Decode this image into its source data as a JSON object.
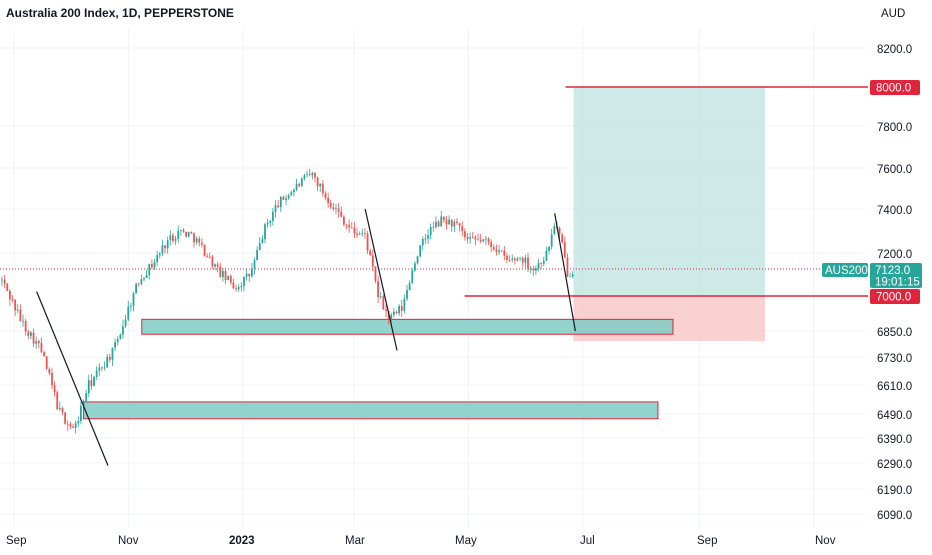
{
  "chart": {
    "title": "Australia 200 Index, 1D, PEPPERSTONE",
    "currency": "AUD",
    "y_ticks": [
      "8200.0",
      "7800.0",
      "7600.0",
      "7400.0",
      "7200.0",
      "6850.0",
      "6730.0",
      "6610.0",
      "6490.0",
      "6390.0",
      "6290.0",
      "6190.0",
      "6090.0"
    ],
    "x_ticks": [
      {
        "label": "Sep",
        "bold": false
      },
      {
        "label": "Nov",
        "bold": false
      },
      {
        "label": "2023",
        "bold": true
      },
      {
        "label": "Mar",
        "bold": false
      },
      {
        "label": "May",
        "bold": false
      },
      {
        "label": "Jul",
        "bold": false
      },
      {
        "label": "Sep",
        "bold": false
      },
      {
        "label": "Nov",
        "bold": false
      }
    ],
    "price_tags": {
      "target": "8000.0",
      "stop": "7000.0",
      "symbol": "AUS200",
      "last_price": "7123.0",
      "countdown": "19:01:15"
    },
    "colors": {
      "up": "#26a69a",
      "down": "#ef5350",
      "target_line": "#e0243c",
      "profit_zone": "#b2dfdb",
      "loss_zone": "#f8c6c6",
      "support_zone": "#80cbc4",
      "tag_red": "#e0243c",
      "tag_green": "#26a69a"
    }
  },
  "chart_data": {
    "type": "candlestick",
    "title": "Australia 200 Index, 1D, PEPPERSTONE",
    "ylabel": "AUD",
    "ylim": [
      6050,
      8350
    ],
    "x_range": [
      "2022-08-25",
      "2023-11-20"
    ],
    "last_price": 7123.0,
    "price_path": [
      [
        "2022-08-25",
        7080
      ],
      [
        "2022-09-05",
        6890
      ],
      [
        "2022-09-15",
        6770
      ],
      [
        "2022-09-25",
        6500
      ],
      [
        "2022-10-03",
        6420
      ],
      [
        "2022-10-10",
        6600
      ],
      [
        "2022-10-17",
        6680
      ],
      [
        "2022-10-24",
        6760
      ],
      [
        "2022-11-01",
        6950
      ],
      [
        "2022-11-07",
        7080
      ],
      [
        "2022-11-14",
        7150
      ],
      [
        "2022-11-21",
        7250
      ],
      [
        "2022-11-28",
        7300
      ],
      [
        "2022-12-05",
        7280
      ],
      [
        "2022-12-12",
        7200
      ],
      [
        "2022-12-19",
        7110
      ],
      [
        "2022-12-28",
        7040
      ],
      [
        "2023-01-05",
        7100
      ],
      [
        "2023-01-12",
        7300
      ],
      [
        "2023-01-19",
        7420
      ],
      [
        "2023-01-26",
        7480
      ],
      [
        "2023-02-02",
        7540
      ],
      [
        "2023-02-07",
        7570
      ],
      [
        "2023-02-14",
        7460
      ],
      [
        "2023-02-21",
        7380
      ],
      [
        "2023-02-28",
        7300
      ],
      [
        "2023-03-07",
        7280
      ],
      [
        "2023-03-14",
        7000
      ],
      [
        "2023-03-20",
        6900
      ],
      [
        "2023-03-27",
        6950
      ],
      [
        "2023-04-03",
        7180
      ],
      [
        "2023-04-10",
        7300
      ],
      [
        "2023-04-17",
        7350
      ],
      [
        "2023-04-24",
        7330
      ],
      [
        "2023-05-01",
        7250
      ],
      [
        "2023-05-08",
        7260
      ],
      [
        "2023-05-15",
        7230
      ],
      [
        "2023-05-22",
        7160
      ],
      [
        "2023-05-29",
        7180
      ],
      [
        "2023-06-05",
        7120
      ],
      [
        "2023-06-12",
        7200
      ],
      [
        "2023-06-16",
        7340
      ],
      [
        "2023-06-20",
        7230
      ],
      [
        "2023-06-23",
        7100
      ],
      [
        "2023-06-26",
        7123
      ]
    ],
    "position": {
      "target": 8000.0,
      "stop": 7000.0,
      "start": "2023-06-26",
      "end": "2023-10-06"
    },
    "support_zones": [
      {
        "from": "2022-11-08",
        "to": "2023-08-18",
        "low": 6835,
        "high": 6900
      },
      {
        "from": "2022-10-08",
        "to": "2023-08-10",
        "low": 6470,
        "high": 6540
      }
    ],
    "horizontal_lines": [
      {
        "value": 8000.0,
        "from": "2023-06-26",
        "to": "2023-10-06"
      },
      {
        "value": 7000.0,
        "from": "2023-04-29",
        "to": "2023-10-06"
      }
    ],
    "trend_lines": [
      {
        "from": [
          "2022-09-13",
          7020
        ],
        "to": [
          "2022-10-21",
          6280
        ]
      },
      {
        "from": [
          "2023-03-07",
          7400
        ],
        "to": [
          "2023-03-24",
          6760
        ]
      },
      {
        "from": [
          "2023-06-16",
          7380
        ],
        "to": [
          "2023-06-27",
          6850
        ]
      }
    ],
    "grid": true
  }
}
